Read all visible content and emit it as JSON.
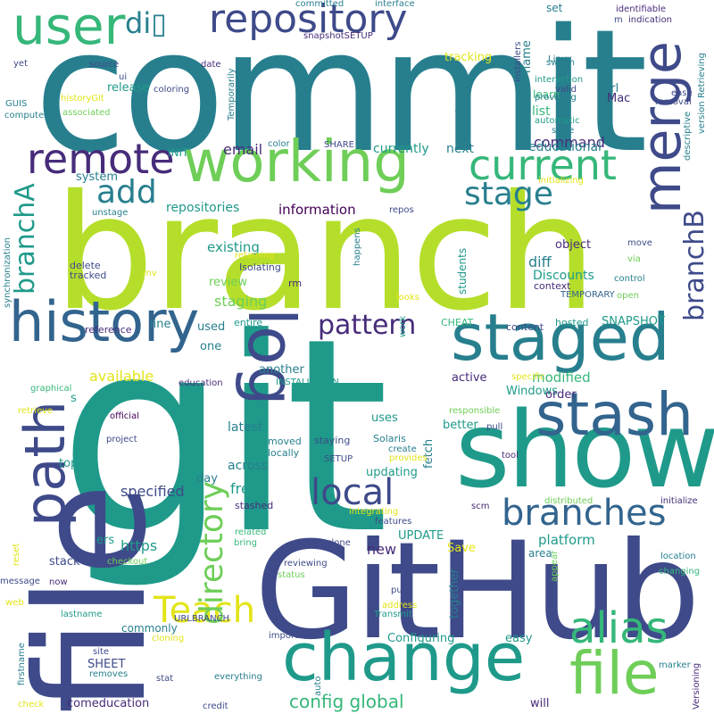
{
  "palette": {
    "dark_purple": "#472c7a",
    "indigo": "#3e4a89",
    "blue": "#32648e",
    "teal_blue": "#277f8e",
    "teal": "#1f9a8a",
    "green": "#35b779",
    "lime_green": "#6ece58",
    "lime": "#b5de2b",
    "yellow": "#e2e418",
    "deep_purple": "#440154"
  },
  "words": {
    "commit": "commit",
    "branch": "branch",
    "git": "git",
    "GitHub": "GitHub",
    "file": "file",
    "show": "show",
    "change": "change",
    "working": "working",
    "history": "history",
    "staged": "staged",
    "stash": "stash",
    "user": "user",
    "repository": "repository",
    "merge": "merge",
    "remote": "remote",
    "path": "path",
    "current": "current",
    "log": "log",
    "stage": "stage",
    "add": "add",
    "alias": "alias",
    "file2": "file",
    "branches": "branches",
    "local": "local",
    "Teach": "Teach",
    "directory": "directory",
    "branchA": "branchA",
    "branchB": "branchB",
    "pattern": "pattern",
    "diff_glyph": "di▯",
    "config_global": "config global",
    "email": "email",
    "command": "command",
    "repositories": "repositories",
    "information": "information",
    "existing": "existing",
    "staging": "staging",
    "review": "review",
    "diff": "diff",
    "specified": "specified",
    "free": "free",
    "https": "https",
    "platform": "platform",
    "available": "available",
    "modified": "modified",
    "new": "new",
    "Discounts": "Discounts",
    "SNAPSHOT": "SNAPSHOT",
    "educational": "educational",
    "currently": "currently",
    "next": "next",
    "Windows": "Windows",
    "updating": "updating",
    "across": "across",
    "latest": "latest",
    "release": "release",
    "list": "list",
    "learn": "learn",
    "url": "url",
    "set": "set",
    "Mac": "Mac",
    "name": "name",
    "tracking": "tracking",
    "changed": "changed",
    "fetch": "fetch",
    "better": "better",
    "uses": "uses",
    "another": "another",
    "active": "active",
    "object": "object",
    "students": "students",
    "day": "day",
    "one": "one",
    "used": "used",
    "line": "line",
    "stack": "stack",
    "Save": "Save",
    "UPDATE": "UPDATE",
    "easy": "easy",
    "Configuring": "Configuring",
    "together": "together",
    "comeducation": "comeducation",
    "will": "will",
    "SHEET": "SHEET",
    "commonly": "commonly",
    "top": "top",
    "area": "area",
    "order": "order",
    "ers": "ers",
    "s": "s",
    "system": "system",
    "INIT": "INIT",
    "Isolating": "Isolating",
    "rm": "rm",
    "tracked": "tracked",
    "delete": "delete",
    "context": "context",
    "TEMPORARY": "TEMPORARY",
    "reference": "reference",
    "entire": "entire",
    "CHEAT": "CHEAT",
    "content": "content",
    "hosted": "hosted",
    "education": "education",
    "INSTALLATION": "INSTALLATION",
    "responsible": "responsible",
    "pull": "pull",
    "staying": "staying",
    "Solaris": "Solaris",
    "create": "create",
    "provides": "provides",
    "SETUP": "SETUP",
    "tool": "tool",
    "locally": "locally",
    "moved": "moved",
    "stashed": "stashed",
    "integrating": "integrating",
    "features": "features",
    "scm": "scm",
    "distributed": "distributed",
    "initialize": "initialize",
    "location": "location",
    "changing": "changing",
    "related": "related",
    "bring": "bring",
    "clone": "clone",
    "reviewing": "reviewing",
    "status": "status",
    "push": "push",
    "address": "address",
    "Transmit": "Transmit",
    "URLBRANCH": "URLBRANCH",
    "important": "important",
    "cloning": "cloning",
    "lastname": "lastname",
    "firstname": "firstname",
    "site": "site",
    "removes": "removes",
    "stat": "stat",
    "everything": "everything",
    "auto": "auto",
    "credit": "credit",
    "check": "check",
    "marker": "marker",
    "Versioning": "Versioning",
    "web": "web",
    "message": "message",
    "now": "now",
    "reset": "reset",
    "checkout": "checkout",
    "appear": "appear",
    "official": "official",
    "project": "project",
    "retrieve": "retrieve",
    "graphical": "graphical",
    "synchronization": "synchronization",
    "unstage": "unstage",
    "mv": "mv",
    "retaining": "retaining",
    "happens": "happens",
    "repos": "repos",
    "color": "color",
    "SHARE": "SHARE",
    "initializing": "initializing",
    "looks": "looks",
    "work": "work",
    "specific": "specific",
    "via": "via",
    "move": "move",
    "control": "control",
    "open": "open",
    "computer": "computer",
    "GUIS": "GUIS",
    "historyGit": "historyGit",
    "associated": "associated",
    "yet": "yet",
    "source": "source",
    "ui": "ui",
    "coloring": "coloring",
    "Temporarily": "Temporarily",
    "date": "date",
    "committed": "committed",
    "interface": "interface",
    "snapshotSETUP": "snapshotSETUP",
    "identifiable": "identifiable",
    "indication": "indication",
    "m": "m",
    "Linux": "Linux",
    "installers": "installers",
    "switch": "switch",
    "interaction": "interaction",
    "valid": "valid",
    "providing": "providing",
    "automatic": "automatic",
    "store": "store",
    "ease": "ease",
    "removal": "removal",
    "descriptive": "descriptive",
    "version": "version",
    "Retrieving": "Retrieving"
  }
}
